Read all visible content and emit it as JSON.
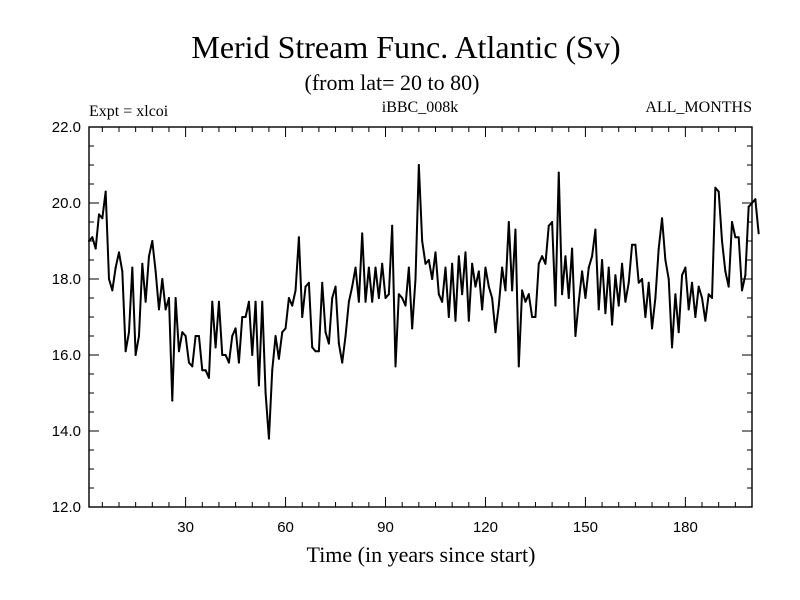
{
  "chart_data": {
    "type": "line",
    "title": "Merid Stream Func. Atlantic (Sv)",
    "subtitle": "(from lat= 20 to 80)",
    "experiment_label": "Expt = xlcoi",
    "run_label": "iBBC_008k",
    "months_label": "ALL_MONTHS",
    "xlabel": "Time (in years since start)",
    "ylabel": "",
    "xlim": [
      1,
      200
    ],
    "ylim": [
      12,
      22
    ],
    "xticks": [
      30,
      60,
      90,
      120,
      150,
      180
    ],
    "yticks": [
      12,
      14,
      16,
      18,
      20,
      22
    ],
    "ytick_labels": [
      "12.0",
      "14.0",
      "16.0",
      "18.0",
      "20.0",
      "22.0"
    ],
    "grid": false,
    "series": [
      {
        "name": "Merid Stream Func. Atlantic",
        "x_start": 1,
        "x_step": 1,
        "values": [
          19.0,
          19.1,
          18.8,
          19.7,
          19.6,
          20.3,
          18.0,
          17.7,
          18.3,
          18.7,
          18.2,
          16.1,
          16.6,
          18.3,
          16.0,
          16.5,
          18.4,
          17.4,
          18.6,
          19.0,
          18.2,
          17.2,
          18.0,
          17.2,
          17.5,
          14.8,
          17.5,
          16.1,
          16.6,
          16.5,
          15.8,
          15.7,
          16.5,
          16.5,
          15.6,
          15.6,
          15.4,
          17.4,
          16.2,
          17.4,
          16.0,
          16.0,
          15.8,
          16.5,
          16.7,
          15.8,
          17.0,
          17.0,
          17.4,
          16.0,
          17.4,
          15.2,
          17.4,
          15.0,
          13.8,
          15.6,
          16.5,
          15.9,
          16.6,
          16.7,
          17.5,
          17.3,
          17.7,
          19.1,
          17.0,
          17.8,
          17.9,
          16.2,
          16.1,
          16.1,
          17.9,
          16.6,
          16.3,
          17.5,
          17.8,
          16.3,
          15.8,
          16.5,
          17.4,
          17.8,
          18.3,
          17.4,
          19.2,
          17.4,
          18.3,
          17.4,
          18.3,
          17.5,
          18.4,
          17.5,
          17.6,
          19.4,
          15.7,
          17.6,
          17.5,
          17.3,
          18.3,
          16.7,
          18.0,
          21.0,
          19.0,
          18.4,
          18.5,
          18.0,
          18.7,
          17.6,
          17.4,
          18.3,
          17.0,
          18.4,
          16.9,
          18.6,
          17.6,
          18.7,
          16.9,
          18.4,
          17.8,
          18.2,
          17.2,
          18.3,
          17.8,
          17.5,
          16.6,
          17.3,
          18.3,
          17.7,
          19.5,
          17.7,
          19.3,
          15.7,
          17.7,
          17.4,
          17.6,
          17.0,
          17.0,
          18.4,
          18.6,
          18.4,
          19.4,
          19.5,
          17.3,
          20.8,
          17.6,
          18.6,
          17.5,
          18.8,
          16.5,
          17.4,
          18.2,
          17.5,
          18.3,
          18.6,
          19.3,
          17.2,
          18.5,
          17.1,
          18.3,
          16.8,
          18.1,
          17.3,
          18.4,
          17.4,
          17.9,
          18.9,
          18.9,
          17.9,
          18.0,
          17.0,
          17.9,
          16.7,
          17.5,
          18.8,
          19.6,
          18.5,
          18.0,
          16.2,
          17.6,
          16.6,
          18.1,
          18.3,
          17.2,
          17.9,
          17.0,
          17.8,
          17.5,
          16.9,
          17.6,
          17.5,
          20.4,
          20.3,
          19.0,
          18.2,
          17.8,
          19.5,
          19.1,
          19.1,
          17.7,
          18.1,
          19.9,
          20.0,
          20.1,
          19.2
        ]
      }
    ]
  }
}
